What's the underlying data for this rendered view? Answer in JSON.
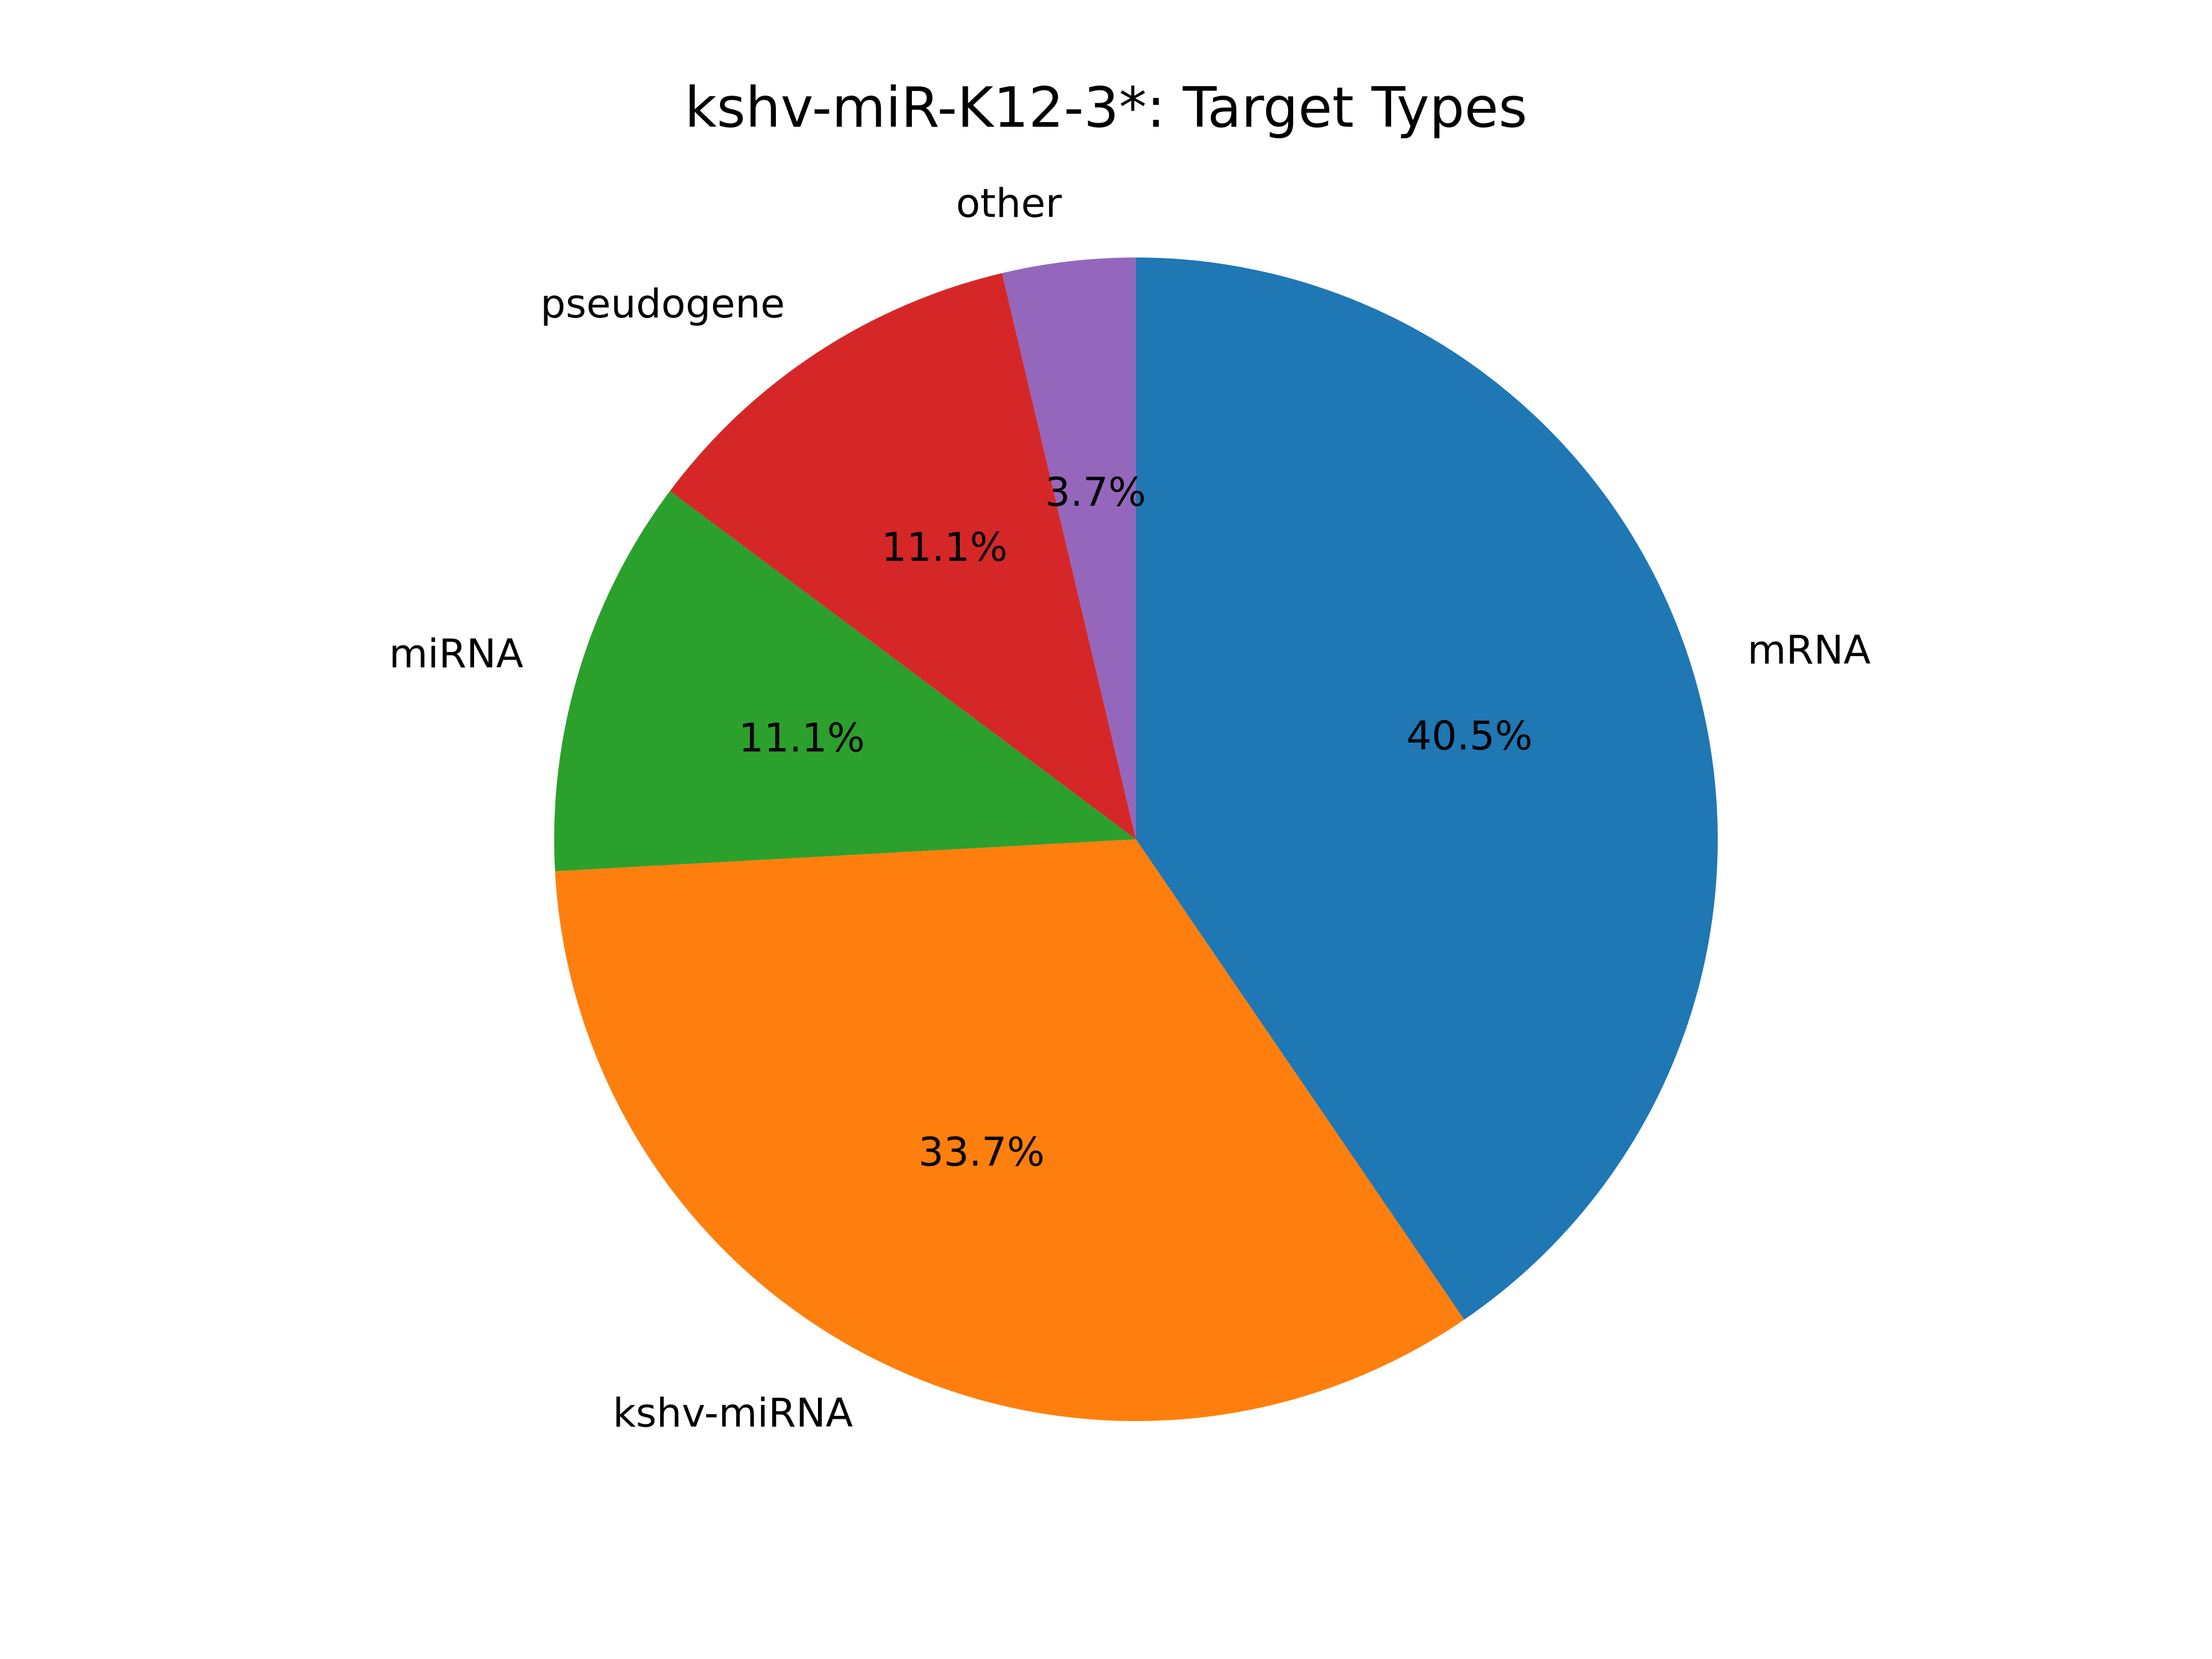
{
  "chart_data": {
    "type": "pie",
    "title": "kshv-miR-K12-3*: Target Types",
    "categories": [
      "mRNA",
      "kshv-miRNA",
      "miRNA",
      "pseudogene",
      "other"
    ],
    "values": [
      40.5,
      33.7,
      11.1,
      11.1,
      3.7
    ],
    "value_labels": [
      "40.5%",
      "33.7%",
      "11.1%",
      "11.1%",
      "3.7%"
    ],
    "colors": [
      "#1f77b4",
      "#ff7f0e",
      "#2ca02c",
      "#d62728",
      "#9467bd"
    ],
    "start_angle_deg": 90,
    "direction": "clockwise",
    "legend": "none"
  }
}
